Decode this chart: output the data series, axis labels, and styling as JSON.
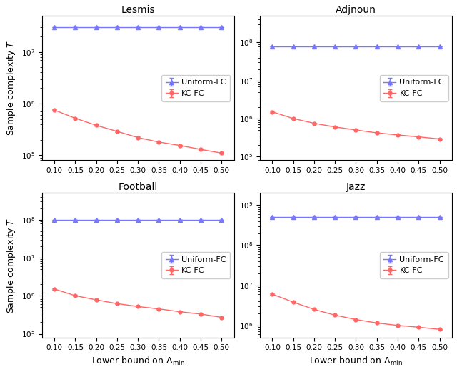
{
  "x": [
    0.1,
    0.15,
    0.2,
    0.25,
    0.3,
    0.35,
    0.4,
    0.45,
    0.5
  ],
  "plots": [
    {
      "title": "Lesmis",
      "uniform_y": [
        30000000.0,
        30000000.0,
        30000000.0,
        30000000.0,
        30000000.0,
        30000000.0,
        30000000.0,
        30000000.0,
        30000000.0
      ],
      "uniform_yerr": [
        0,
        0,
        0,
        0,
        0,
        0,
        0,
        0,
        0
      ],
      "kc_y": [
        750000.0,
        520000.0,
        380000.0,
        290000.0,
        220000.0,
        180000.0,
        155000.0,
        130000.0,
        110000.0
      ],
      "kc_yerr": [
        20000.0,
        15000.0,
        12000.0,
        10000.0,
        8000.0,
        6000.0,
        5000.0,
        4000.0,
        3000.0
      ],
      "ylim_lo": 80000.0,
      "ylim_hi": 50000000.0
    },
    {
      "title": "Adjnoun",
      "uniform_y": [
        80000000.0,
        80000000.0,
        80000000.0,
        80000000.0,
        80000000.0,
        80000000.0,
        80000000.0,
        80000000.0,
        80000000.0
      ],
      "uniform_yerr": [
        0,
        0,
        0,
        0,
        0,
        0,
        0,
        0,
        0
      ],
      "kc_y": [
        1500000.0,
        1000000.0,
        750000.0,
        600000.0,
        500000.0,
        420000.0,
        370000.0,
        330000.0,
        290000.0
      ],
      "kc_yerr": [
        80000.0,
        50000.0,
        30000.0,
        25000.0,
        20000.0,
        15000.0,
        12000.0,
        10000.0,
        8000.0
      ],
      "ylim_lo": 80000.0,
      "ylim_hi": 500000000.0
    },
    {
      "title": "Football",
      "uniform_y": [
        100000000.0,
        100000000.0,
        100000000.0,
        100000000.0,
        100000000.0,
        100000000.0,
        100000000.0,
        100000000.0,
        100000000.0
      ],
      "uniform_yerr": [
        0,
        0,
        0,
        0,
        0,
        0,
        0,
        0,
        0
      ],
      "kc_y": [
        1500000.0,
        1000000.0,
        780000.0,
        620000.0,
        520000.0,
        450000.0,
        380000.0,
        330000.0,
        270000.0
      ],
      "kc_yerr": [
        80000.0,
        40000.0,
        30000.0,
        25000.0,
        20000.0,
        15000.0,
        12000.0,
        10000.0,
        8000.0
      ],
      "ylim_lo": 80000.0,
      "ylim_hi": 500000000.0
    },
    {
      "title": "Jazz",
      "uniform_y": [
        500000000.0,
        500000000.0,
        500000000.0,
        500000000.0,
        500000000.0,
        500000000.0,
        500000000.0,
        500000000.0,
        500000000.0
      ],
      "uniform_yerr": [
        0,
        0,
        0,
        0,
        0,
        0,
        0,
        0,
        0
      ],
      "kc_y": [
        6000000.0,
        3800000.0,
        2500000.0,
        1800000.0,
        1400000.0,
        1150000.0,
        1000000.0,
        900000.0,
        800000.0
      ],
      "kc_yerr": [
        300000.0,
        150000.0,
        80000.0,
        50000.0,
        40000.0,
        30000.0,
        25000.0,
        20000.0,
        15000.0
      ],
      "ylim_lo": 500000.0,
      "ylim_hi": 2000000000.0
    }
  ],
  "uniform_color": "#7777ff",
  "kc_color": "#ff6666",
  "legend_labels": [
    "Uniform-FC",
    "KC-FC"
  ]
}
